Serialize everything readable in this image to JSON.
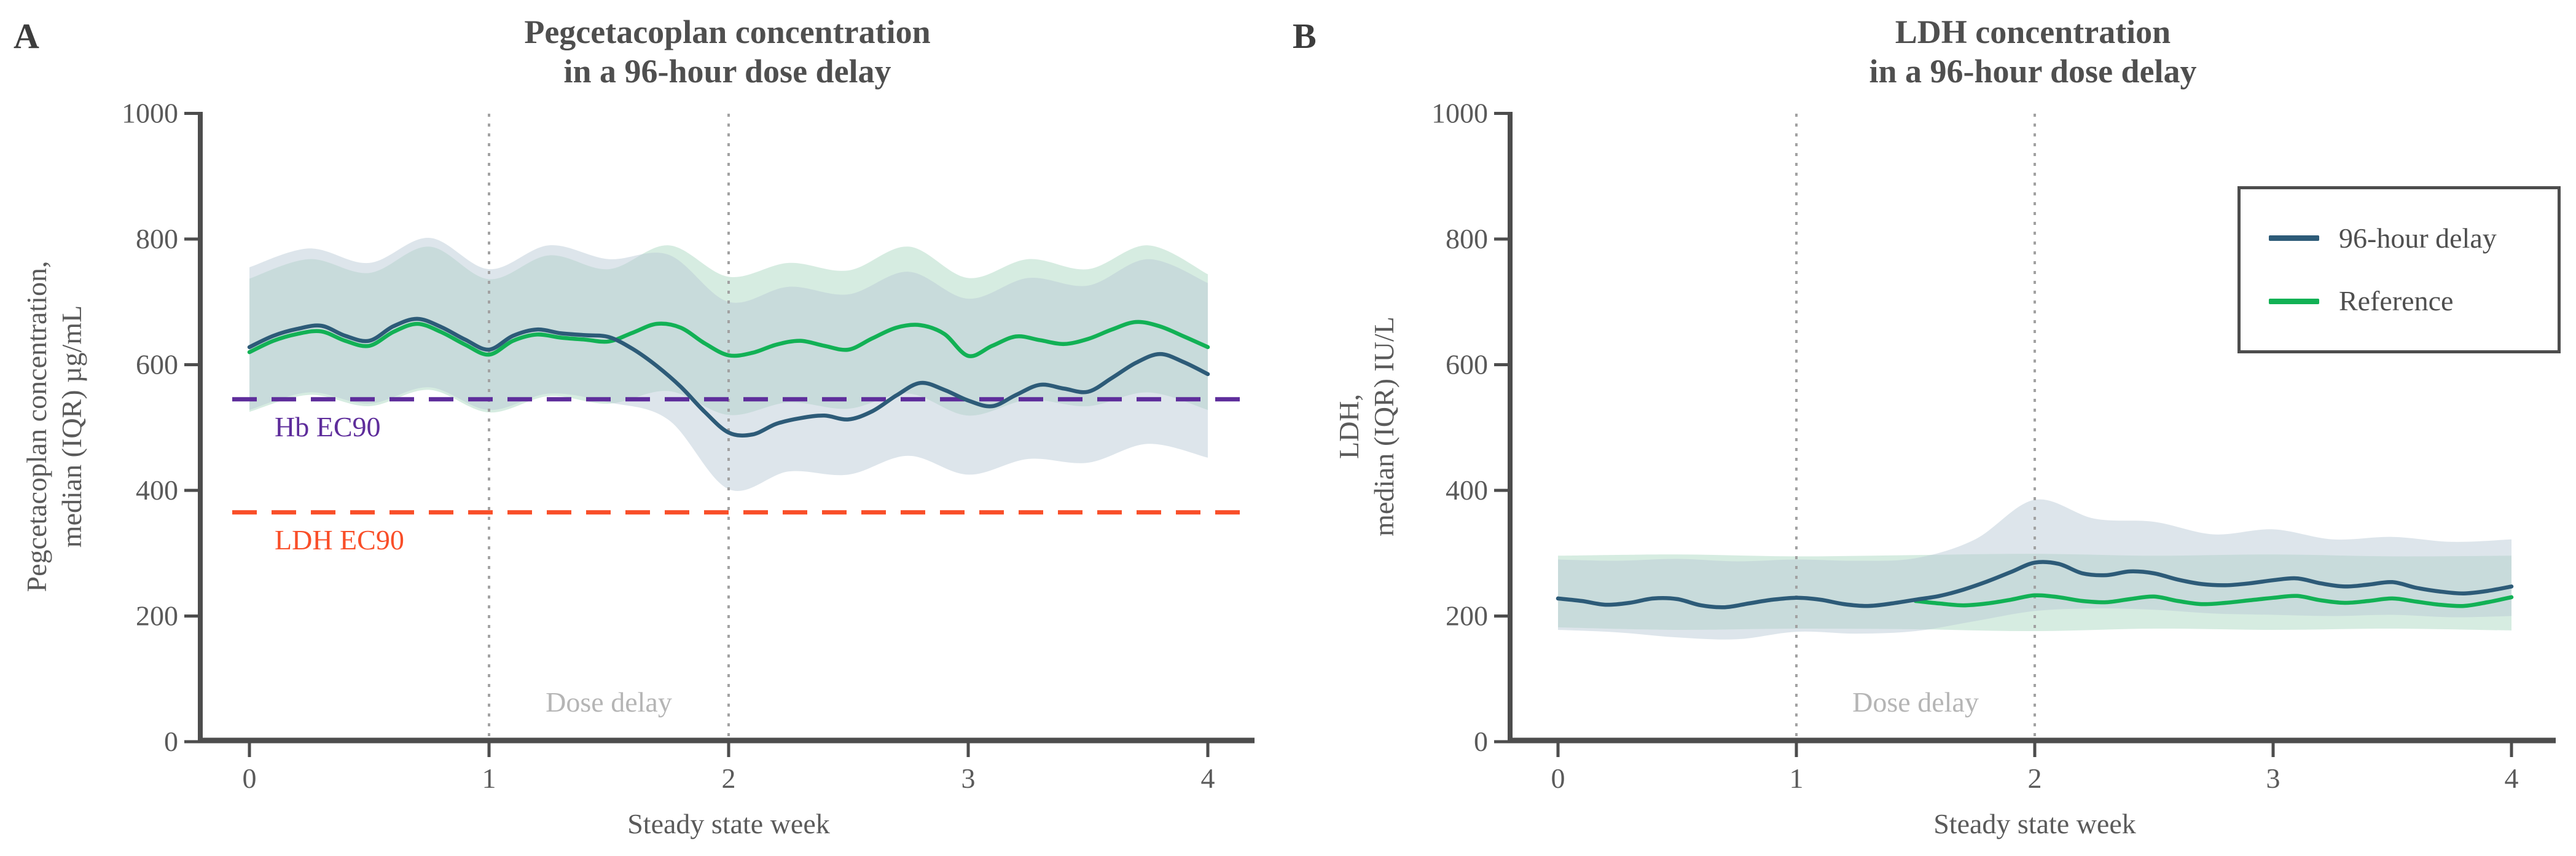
{
  "figure": {
    "panels": [
      {
        "letter": "A"
      },
      {
        "letter": "B"
      }
    ]
  },
  "chart_data": [
    {
      "type": "line",
      "panel": "A",
      "title_line1": "Pegcetacoplan concentration",
      "title_line2": "in a 96-hour dose delay",
      "xlabel": "Steady state week",
      "ylabel_line1": "Pegcetacoplan concentration,",
      "ylabel_line2": "median (IQR) µg/mL",
      "xlim": [
        0,
        4
      ],
      "ylim": [
        0,
        1000
      ],
      "x_ticks": [
        0,
        1,
        2,
        3,
        4
      ],
      "y_ticks": [
        0,
        200,
        400,
        600,
        800,
        1000
      ],
      "grid": false,
      "dose_delay": {
        "label": "Dose delay",
        "span_weeks": [
          1,
          2
        ]
      },
      "reference_lines": [
        {
          "label": "Hb EC90",
          "y": 545,
          "color": "#5e2d9b"
        },
        {
          "label": "LDH EC90",
          "y": 365,
          "color": "#f94e28"
        }
      ],
      "series": [
        {
          "name": "Reference",
          "color": "#12b155",
          "band_color": "#a5d4bd",
          "band_opacity": 0.45,
          "x": [
            0,
            0.1,
            0.2,
            0.3,
            0.4,
            0.5,
            0.6,
            0.7,
            0.8,
            0.9,
            1.0,
            1.1,
            1.2,
            1.3,
            1.4,
            1.5,
            1.6,
            1.7,
            1.8,
            1.9,
            2.0,
            2.1,
            2.2,
            2.3,
            2.4,
            2.5,
            2.6,
            2.7,
            2.8,
            2.9,
            3.0,
            3.1,
            3.2,
            3.3,
            3.4,
            3.5,
            3.6,
            3.7,
            3.8,
            3.9,
            4.0
          ],
          "y": [
            620,
            638,
            649,
            653,
            638,
            630,
            652,
            665,
            652,
            632,
            616,
            638,
            648,
            643,
            640,
            637,
            651,
            665,
            659,
            634,
            615,
            619,
            632,
            638,
            630,
            624,
            642,
            659,
            663,
            649,
            614,
            630,
            645,
            639,
            633,
            641,
            656,
            668,
            661,
            645,
            628
          ],
          "band": {
            "x": [
              0,
              0.25,
              0.5,
              0.75,
              1.0,
              1.25,
              1.5,
              1.75,
              2.0,
              2.25,
              2.5,
              2.75,
              3.0,
              3.25,
              3.5,
              3.75,
              4.0
            ],
            "lo": [
              525,
              552,
              534,
              560,
              524,
              550,
              538,
              558,
              520,
              540,
              530,
              554,
              519,
              544,
              534,
              556,
              528
            ],
            "hi": [
              737,
              768,
              746,
              788,
              736,
              774,
              752,
              790,
              740,
              762,
              750,
              788,
              738,
              768,
              752,
              790,
              744
            ]
          }
        },
        {
          "name": "96-hour delay",
          "color": "#2d5b78",
          "band_color": "#b7c9d6",
          "band_opacity": 0.48,
          "x": [
            0,
            0.1,
            0.2,
            0.3,
            0.4,
            0.5,
            0.6,
            0.7,
            0.8,
            0.9,
            1.0,
            1.1,
            1.2,
            1.3,
            1.4,
            1.5,
            1.6,
            1.7,
            1.8,
            1.9,
            2.0,
            2.1,
            2.2,
            2.3,
            2.4,
            2.5,
            2.6,
            2.7,
            2.8,
            2.9,
            3.0,
            3.1,
            3.2,
            3.3,
            3.4,
            3.5,
            3.6,
            3.7,
            3.8,
            3.9,
            4.0
          ],
          "y": [
            628,
            646,
            657,
            662,
            646,
            638,
            661,
            673,
            660,
            640,
            624,
            646,
            656,
            650,
            647,
            644,
            625,
            598,
            565,
            525,
            492,
            489,
            506,
            515,
            519,
            513,
            526,
            551,
            571,
            560,
            543,
            534,
            552,
            568,
            562,
            557,
            579,
            603,
            617,
            604,
            585
          ],
          "band": {
            "x": [
              0,
              0.25,
              0.5,
              0.75,
              1.0,
              1.25,
              1.5,
              1.75,
              2.0,
              2.25,
              2.5,
              2.75,
              3.0,
              3.25,
              3.5,
              3.75,
              4.0
            ],
            "lo": [
              528,
              556,
              538,
              564,
              528,
              554,
              540,
              512,
              402,
              430,
              425,
              455,
              425,
              450,
              444,
              474,
              452
            ],
            "hi": [
              755,
              785,
              762,
              802,
              752,
              790,
              768,
              775,
              700,
              724,
              712,
              748,
              705,
              738,
              726,
              768,
              730
            ]
          }
        }
      ]
    },
    {
      "type": "line",
      "panel": "B",
      "title_line1": "LDH concentration",
      "title_line2": "in a 96-hour dose delay",
      "xlabel": "Steady state week",
      "ylabel_line1": "LDH,",
      "ylabel_line2": "median (IQR) IU/L",
      "xlim": [
        0,
        4
      ],
      "ylim": [
        0,
        1000
      ],
      "x_ticks": [
        0,
        1,
        2,
        3,
        4
      ],
      "y_ticks": [
        0,
        200,
        400,
        600,
        800,
        1000
      ],
      "grid": false,
      "dose_delay": {
        "label": "Dose delay",
        "span_weeks": [
          1,
          2
        ]
      },
      "reference_lines": [],
      "legend_position": "upper right",
      "series": [
        {
          "name": "Reference",
          "color": "#12b155",
          "band_color": "#a5d4bd",
          "band_opacity": 0.45,
          "x": [
            1.5,
            1.6,
            1.7,
            1.8,
            1.9,
            2.0,
            2.1,
            2.2,
            2.3,
            2.4,
            2.5,
            2.6,
            2.7,
            2.8,
            2.9,
            3.0,
            3.1,
            3.2,
            3.3,
            3.4,
            3.5,
            3.6,
            3.7,
            3.8,
            3.9,
            4.0
          ],
          "y": [
            224,
            220,
            217,
            220,
            226,
            233,
            230,
            224,
            222,
            227,
            231,
            224,
            219,
            221,
            225,
            229,
            232,
            225,
            221,
            224,
            228,
            223,
            218,
            216,
            222,
            230
          ],
          "band": {
            "x": [
              0,
              0.5,
              1.0,
              1.5,
              2.0,
              2.5,
              3.0,
              3.5,
              4.0
            ],
            "lo": [
              182,
              178,
              180,
              179,
              176,
              180,
              178,
              180,
              177
            ],
            "hi": [
              296,
              298,
              295,
              297,
              299,
              296,
              298,
              295,
              296
            ]
          }
        },
        {
          "name": "96-hour delay",
          "color": "#2d5b78",
          "band_color": "#b7c9d6",
          "band_opacity": 0.48,
          "x": [
            0,
            0.1,
            0.2,
            0.3,
            0.4,
            0.5,
            0.6,
            0.7,
            0.8,
            0.9,
            1.0,
            1.1,
            1.2,
            1.3,
            1.4,
            1.5,
            1.6,
            1.7,
            1.8,
            1.9,
            2.0,
            2.1,
            2.2,
            2.3,
            2.4,
            2.5,
            2.6,
            2.7,
            2.8,
            2.9,
            3.0,
            3.1,
            3.2,
            3.3,
            3.4,
            3.5,
            3.6,
            3.7,
            3.8,
            3.9,
            4.0
          ],
          "y": [
            228,
            224,
            218,
            221,
            228,
            227,
            217,
            214,
            220,
            226,
            229,
            226,
            219,
            216,
            220,
            226,
            232,
            242,
            255,
            270,
            285,
            283,
            268,
            265,
            271,
            268,
            258,
            251,
            249,
            252,
            257,
            260,
            252,
            247,
            250,
            254,
            245,
            239,
            236,
            240,
            247
          ],
          "band": {
            "x": [
              0,
              0.25,
              0.5,
              0.75,
              1.0,
              1.25,
              1.5,
              1.75,
              2.0,
              2.25,
              2.5,
              2.75,
              3.0,
              3.25,
              3.5,
              3.75,
              4.0
            ],
            "lo": [
              178,
              174,
              166,
              163,
              175,
              172,
              176,
              192,
              208,
              212,
              210,
              204,
              202,
              200,
              202,
              198,
              200
            ],
            "hi": [
              290,
              288,
              291,
              287,
              290,
              288,
              292,
              322,
              385,
              355,
              350,
              330,
              338,
              322,
              326,
              318,
              322
            ]
          }
        }
      ]
    }
  ]
}
